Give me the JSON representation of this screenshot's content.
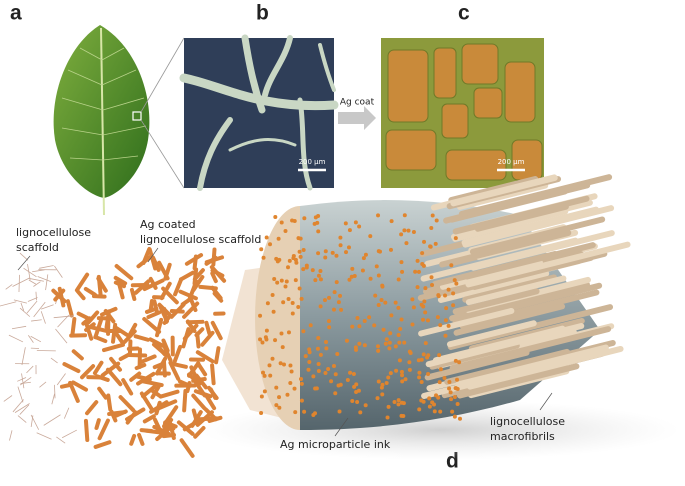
{
  "panels": {
    "a": "a",
    "b": "b",
    "c": "c",
    "d": "d"
  },
  "arrow_label": "Ag coat",
  "scale_bars": [
    "200 µm",
    "200 µm"
  ],
  "labels": {
    "scaffold": [
      "lignocellulose",
      "scaffold"
    ],
    "coated_scaffold": [
      "Ag coated",
      "lignocellulose  scaffold"
    ],
    "ink": "Ag microparticle ink",
    "macrofibrils": [
      "lignocellulose",
      "macrofibrils"
    ]
  }
}
